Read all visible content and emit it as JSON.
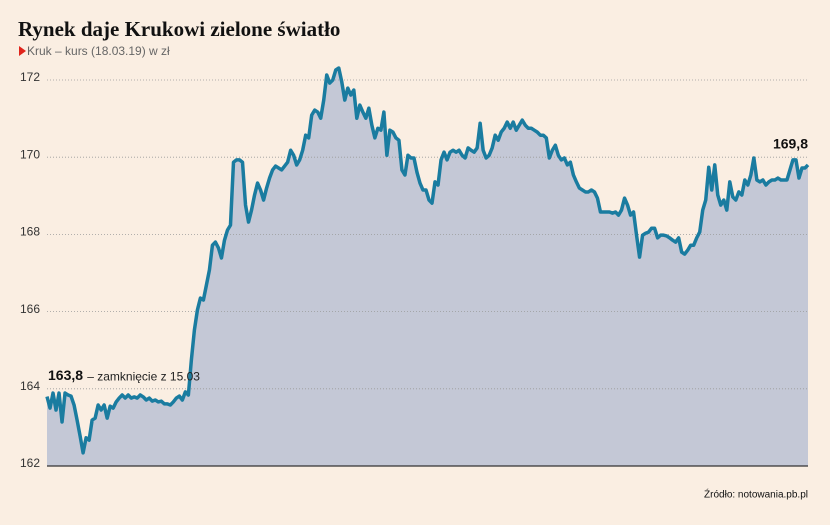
{
  "chart_data": {
    "type": "line",
    "title": "Rynek daje Krukowi zielone światło",
    "subtitle": "Kruk – kurs (18.03.19) w zł",
    "source": "Źródło: notowania.pb.pl",
    "color": "#1a7ca0",
    "fill": "#c4c8d6",
    "grid": true,
    "ylim": [
      162,
      172.5
    ],
    "yticks": [
      162,
      164,
      166,
      168,
      170,
      172
    ],
    "values": [
      163.8,
      163.5,
      163.89,
      163.45,
      163.89,
      163.14,
      163.89,
      163.84,
      163.81,
      163.58,
      163.19,
      162.78,
      162.34,
      162.73,
      162.67,
      163.19,
      163.24,
      163.58,
      163.45,
      163.58,
      163.24,
      163.55,
      163.5,
      163.66,
      163.76,
      163.84,
      163.76,
      163.84,
      163.76,
      163.79,
      163.76,
      163.84,
      163.79,
      163.71,
      163.76,
      163.68,
      163.71,
      163.66,
      163.68,
      163.61,
      163.61,
      163.58,
      163.66,
      163.76,
      163.81,
      163.71,
      163.92,
      163.84,
      164.75,
      165.52,
      166.04,
      166.35,
      166.3,
      166.69,
      167.08,
      167.72,
      167.8,
      167.65,
      167.39,
      167.85,
      168.11,
      168.24,
      169.87,
      169.93,
      169.93,
      169.87,
      168.76,
      168.32,
      168.63,
      169.02,
      169.33,
      169.15,
      168.89,
      169.2,
      169.46,
      169.67,
      169.77,
      169.72,
      169.67,
      169.77,
      169.87,
      170.18,
      170.05,
      169.8,
      169.93,
      170.18,
      170.57,
      170.5,
      171.09,
      171.22,
      171.17,
      171.01,
      171.48,
      172.13,
      171.92,
      172.0,
      172.26,
      172.31,
      171.95,
      171.48,
      171.79,
      171.61,
      171.74,
      171.01,
      171.35,
      171.17,
      171.01,
      171.27,
      170.83,
      170.5,
      170.75,
      170.7,
      171.17,
      170.05,
      170.7,
      170.65,
      170.5,
      170.44,
      169.67,
      169.54,
      170.05,
      169.98,
      169.98,
      169.61,
      169.33,
      169.15,
      169.15,
      168.89,
      168.81,
      169.36,
      169.28,
      169.93,
      170.13,
      169.93,
      170.13,
      170.18,
      170.13,
      170.18,
      170.05,
      169.98,
      170.24,
      170.18,
      170.13,
      170.24,
      170.88,
      170.18,
      169.98,
      170.05,
      170.24,
      170.57,
      170.44,
      170.65,
      170.75,
      170.91,
      170.75,
      170.91,
      170.7,
      170.83,
      170.96,
      170.83,
      170.75,
      170.75,
      170.7,
      170.65,
      170.57,
      170.57,
      170.5,
      169.98,
      170.18,
      170.31,
      170.05,
      169.93,
      169.98,
      169.8,
      169.87,
      169.54,
      169.36,
      169.2,
      169.15,
      169.1,
      169.1,
      169.15,
      169.1,
      168.94,
      168.58,
      168.58,
      168.58,
      168.58,
      168.55,
      168.58,
      168.5,
      168.63,
      168.94,
      168.76,
      168.5,
      168.58,
      167.98,
      167.41,
      167.98,
      168.03,
      168.06,
      168.16,
      168.16,
      167.91,
      167.98,
      167.98,
      167.96,
      167.91,
      167.85,
      167.8,
      167.91,
      167.54,
      167.49,
      167.59,
      167.72,
      167.72,
      167.91,
      168.06,
      168.63,
      168.89,
      169.74,
      169.15,
      169.8,
      169.02,
      168.76,
      168.89,
      168.63,
      169.36,
      168.97,
      168.89,
      169.1,
      169.02,
      169.41,
      169.28,
      169.54,
      169.98,
      169.41,
      169.36,
      169.41,
      169.28,
      169.36,
      169.41,
      169.41,
      169.46,
      169.41,
      169.41,
      169.41,
      169.67,
      169.93,
      169.93,
      169.46,
      169.72,
      169.72,
      169.8
    ],
    "annotations": [
      {
        "label": "163,8",
        "value": 163.8,
        "note": "– zamknięcie z 15.03"
      },
      {
        "label": "169,8",
        "value": 169.8
      }
    ]
  }
}
